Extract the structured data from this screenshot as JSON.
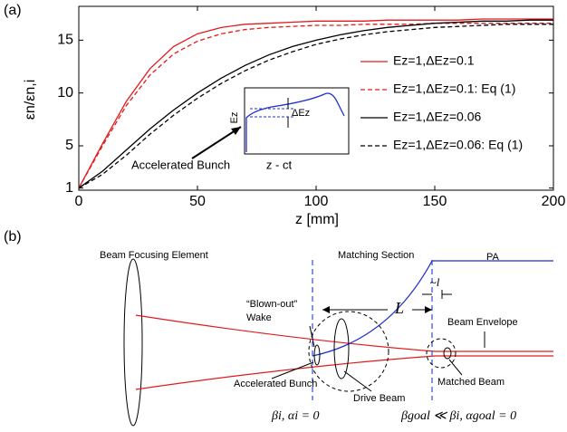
{
  "chart_data": {
    "type": "line",
    "panel_label": "(a)",
    "xlabel": "z [mm]",
    "ylabel": "εn/εn,i",
    "x": [
      0,
      10,
      20,
      30,
      40,
      50,
      60,
      70,
      80,
      90,
      100,
      110,
      120,
      130,
      140,
      150,
      160,
      170,
      180,
      190,
      200
    ],
    "series": [
      {
        "name": "Ez=1,ΔEz=0.1",
        "color": "#e41a1c",
        "linestyle": "solid",
        "values": [
          1,
          5.2,
          9.2,
          12.3,
          14.4,
          15.6,
          16.2,
          16.5,
          16.6,
          16.7,
          16.8,
          16.8,
          16.8,
          16.9,
          16.9,
          16.9,
          16.9,
          17,
          17,
          17,
          17
        ]
      },
      {
        "name": "Ez=1,ΔEz=0.1: Eq (1)",
        "color": "#e41a1c",
        "linestyle": "dashed",
        "values": [
          1,
          5,
          8.8,
          11.7,
          13.7,
          14.9,
          15.6,
          16,
          16.2,
          16.3,
          16.4,
          16.4,
          16.5,
          16.5,
          16.5,
          16.6,
          16.6,
          16.6,
          16.6,
          16.6,
          16.6
        ]
      },
      {
        "name": "Ez=1,ΔEz=0.06",
        "color": "#000000",
        "linestyle": "solid",
        "values": [
          1,
          2.6,
          4.6,
          6.6,
          8.4,
          10,
          11.4,
          12.6,
          13.6,
          14.4,
          15,
          15.5,
          15.9,
          16.2,
          16.4,
          16.6,
          16.7,
          16.8,
          16.8,
          16.9,
          16.9
        ]
      },
      {
        "name": "Ez=1,ΔEz=0.06: Eq (1)",
        "color": "#000000",
        "linestyle": "dashed",
        "values": [
          1,
          2.3,
          4.1,
          6.1,
          7.9,
          9.5,
          10.9,
          12.1,
          13.1,
          13.9,
          14.6,
          15.1,
          15.5,
          15.8,
          16,
          16.2,
          16.3,
          16.4,
          16.5,
          16.5,
          16.5
        ]
      }
    ],
    "xlim": [
      0,
      200
    ],
    "xticks": [
      0,
      50,
      100,
      150,
      200
    ],
    "ylim": [
      0.8,
      18.2
    ],
    "yticks": [
      1,
      5,
      10,
      15
    ],
    "legend": "center right",
    "grid": false,
    "inset": {
      "ylabel": "Ez",
      "delta": "ΔEz",
      "xlabel": "z - ct"
    },
    "annotation": "Accelerated Bunch"
  },
  "diagram": {
    "panel_label": "(b)",
    "focusing": "Beam Focusing Element",
    "matching": "Matching Section",
    "pa": "PA",
    "wake": [
      "“Blown-out”",
      "Wake"
    ],
    "L": "L",
    "l": "~l",
    "envelope": "Beam Envelope",
    "bunch": "Accelerated Bunch",
    "drive": "Drive Beam",
    "matched": "Matched Beam",
    "beta_i": "βi, αi = 0",
    "beta_goal": "βgoal ≪ βi, αgoal = 0"
  }
}
